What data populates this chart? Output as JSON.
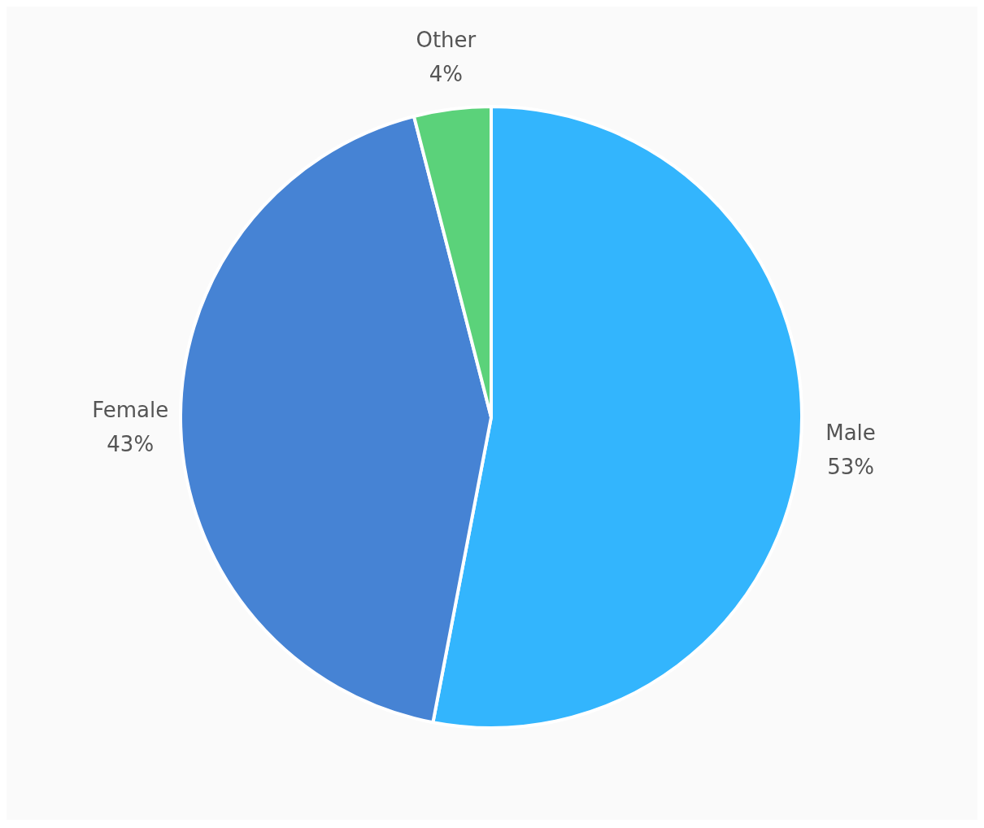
{
  "chart_data": {
    "type": "pie",
    "categories": [
      "Male",
      "Female",
      "Other"
    ],
    "values": [
      53,
      43,
      4
    ],
    "colors": [
      "#33b5fd",
      "#4683d4",
      "#5bd27a"
    ],
    "value_labels": [
      "53%",
      "43%",
      "4%"
    ],
    "legend": false
  }
}
